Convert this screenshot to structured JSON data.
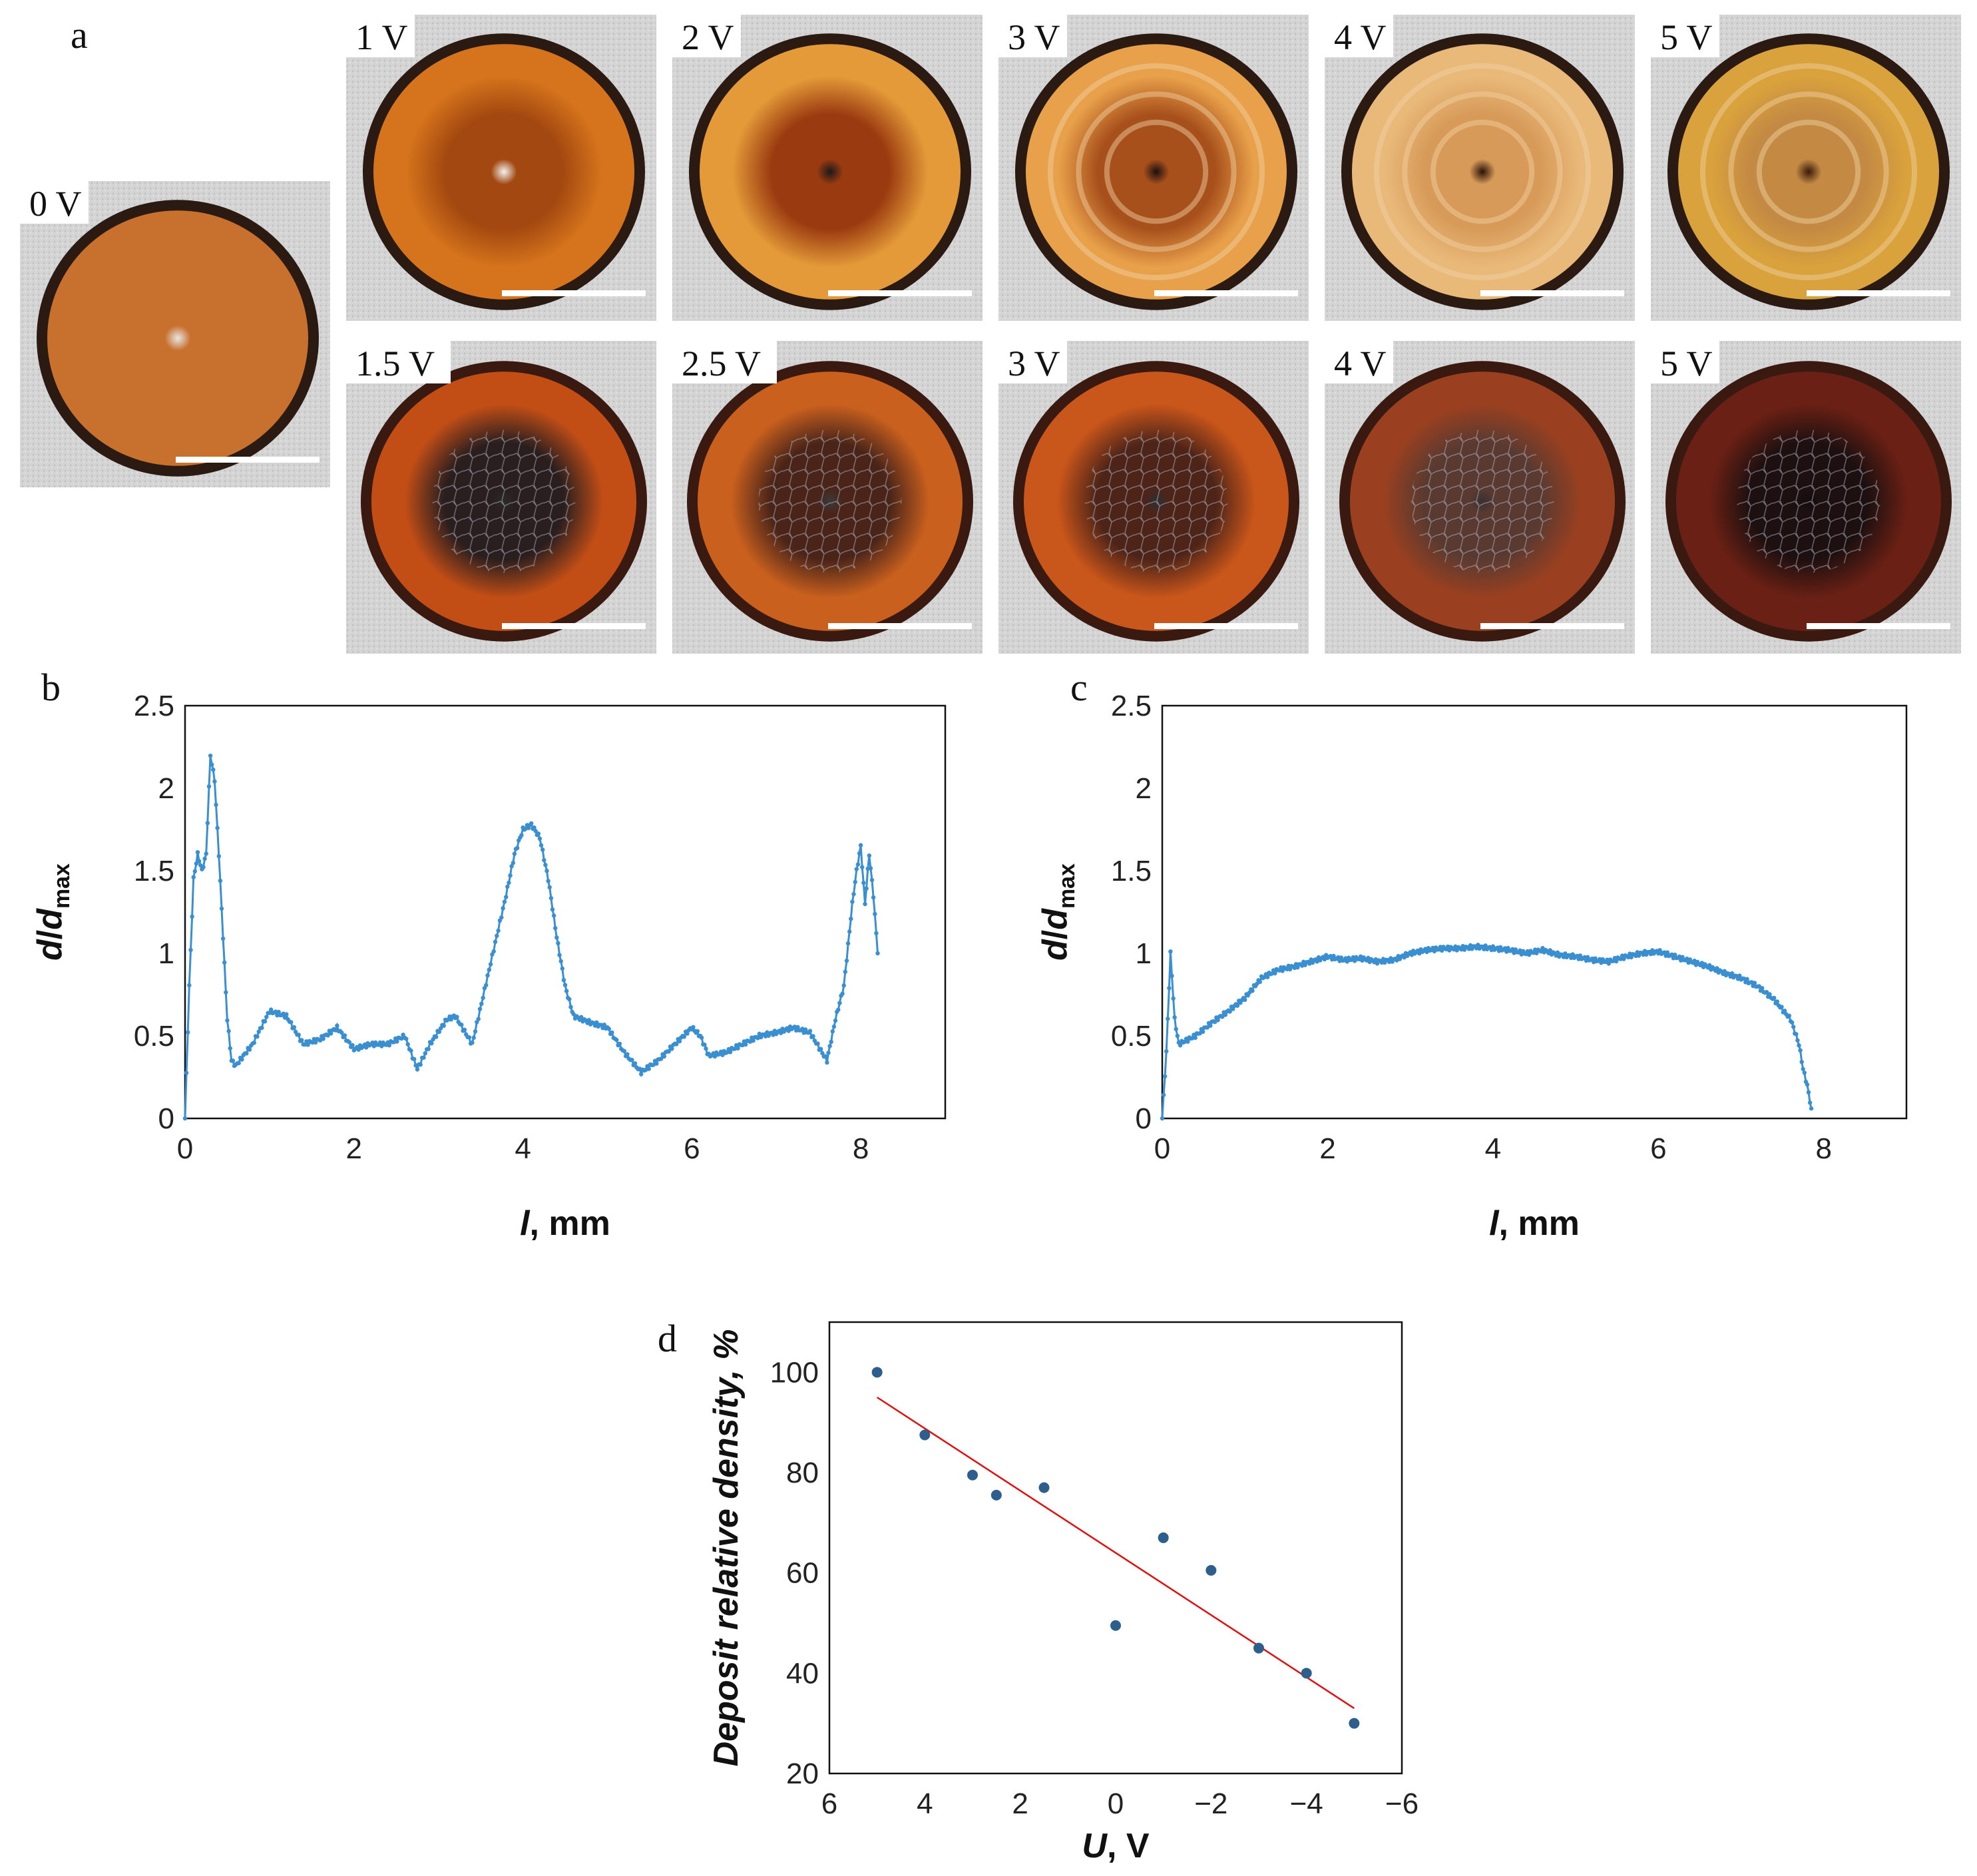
{
  "panel_a": {
    "letter": "a",
    "photos": [
      {
        "label": "0 V",
        "rim": "#2a1a12",
        "mid": "#c8702e",
        "center": "#c8702e",
        "core": "#e6e6e6"
      },
      {
        "label": "1 V",
        "rim": "#2a1a12",
        "mid": "#d5741c",
        "center": "#a34810",
        "core": "#f2f2f2"
      },
      {
        "label": "2 V",
        "rim": "#2a1a12",
        "mid": "#e49a38",
        "center": "#9a3a10",
        "core": "#1a1a1a"
      },
      {
        "label": "3 V",
        "rim": "#2a1a12",
        "mid": "#e8a04a",
        "center": "#a8501c",
        "core": "#1c1010"
      },
      {
        "label": "4 V",
        "rim": "#2a1a12",
        "mid": "#e9b97a",
        "center": "#d79a58",
        "core": "#2a1208"
      },
      {
        "label": "5 V",
        "rim": "#2a1a12",
        "mid": "#d9a23c",
        "center": "#c48a44",
        "core": "#3a1a0a"
      },
      {
        "label": "1.5 V",
        "rim": "#3a1a10",
        "mid": "#c24e16",
        "center": "#2a1e1e",
        "core": "#2a2a2a"
      },
      {
        "label": "2.5 V",
        "rim": "#3a1a10",
        "mid": "#c9601e",
        "center": "#4a2418",
        "core": "#3a3a3a"
      },
      {
        "label": "3 V",
        "rim": "#3a1a10",
        "mid": "#c9561a",
        "center": "#4e2418",
        "core": "#2f2f33"
      },
      {
        "label": "4 V",
        "rim": "#3a1a10",
        "mid": "#9a4020",
        "center": "#5a3a30",
        "core": "#3a3034"
      },
      {
        "label": "5 V",
        "rim": "#3a1a10",
        "mid": "#6a2014",
        "center": "#1e1010",
        "core": "#140c0c"
      }
    ]
  },
  "chart_data": [
    {
      "panel": "b",
      "type": "line",
      "color": "#3a8fd0",
      "xlabel": "l, mm",
      "ylabel": "d/dmax",
      "xlim": [
        0,
        9
      ],
      "ylim": [
        0,
        2.5
      ],
      "xticks": [
        "0",
        "2",
        "4",
        "6",
        "8"
      ],
      "yticks": [
        "0",
        "0.5",
        "1",
        "1.5",
        "2",
        "2.5"
      ],
      "series": [
        {
          "name": "profile",
          "x": [
            0,
            0.05,
            0.1,
            0.15,
            0.2,
            0.25,
            0.3,
            0.35,
            0.4,
            0.45,
            0.5,
            0.55,
            0.6,
            0.8,
            1.0,
            1.2,
            1.4,
            1.6,
            1.8,
            2.0,
            2.2,
            2.4,
            2.6,
            2.75,
            2.9,
            3.1,
            3.2,
            3.4,
            3.6,
            3.8,
            3.9,
            4.0,
            4.1,
            4.2,
            4.3,
            4.4,
            4.5,
            4.6,
            4.8,
            5.0,
            5.2,
            5.4,
            5.6,
            5.8,
            6.0,
            6.1,
            6.2,
            6.4,
            6.6,
            6.8,
            7.0,
            7.2,
            7.4,
            7.6,
            7.7,
            7.8,
            7.9,
            7.95,
            8.0,
            8.05,
            8.1,
            8.15,
            8.2
          ],
          "values": [
            0.0,
            0.8,
            1.45,
            1.6,
            1.5,
            1.6,
            2.2,
            2.05,
            1.6,
            1.1,
            0.6,
            0.35,
            0.32,
            0.45,
            0.65,
            0.62,
            0.45,
            0.48,
            0.55,
            0.42,
            0.45,
            0.45,
            0.5,
            0.3,
            0.45,
            0.6,
            0.62,
            0.45,
            0.9,
            1.35,
            1.6,
            1.75,
            1.78,
            1.7,
            1.45,
            1.1,
            0.8,
            0.62,
            0.58,
            0.55,
            0.4,
            0.28,
            0.35,
            0.45,
            0.55,
            0.5,
            0.38,
            0.4,
            0.45,
            0.5,
            0.52,
            0.55,
            0.52,
            0.35,
            0.6,
            0.8,
            1.3,
            1.5,
            1.65,
            1.3,
            1.6,
            1.35,
            1.0
          ]
        }
      ]
    },
    {
      "panel": "c",
      "type": "line",
      "color": "#3a8fd0",
      "xlabel": "l, mm",
      "ylabel": "d/dmax",
      "xlim": [
        0,
        9
      ],
      "ylim": [
        0,
        2.5
      ],
      "xticks": [
        "0",
        "2",
        "4",
        "6",
        "8"
      ],
      "yticks": [
        "0",
        "0.5",
        "1",
        "1.5",
        "2",
        "2.5"
      ],
      "series": [
        {
          "name": "profile",
          "x": [
            0,
            0.05,
            0.1,
            0.15,
            0.2,
            0.4,
            0.6,
            0.8,
            1.0,
            1.2,
            1.4,
            1.6,
            1.8,
            2.0,
            2.2,
            2.4,
            2.6,
            2.8,
            3.0,
            3.2,
            3.4,
            3.6,
            3.8,
            4.0,
            4.2,
            4.4,
            4.6,
            4.8,
            5.0,
            5.2,
            5.4,
            5.6,
            5.8,
            6.0,
            6.2,
            6.4,
            6.6,
            6.8,
            7.0,
            7.2,
            7.4,
            7.6,
            7.7,
            7.75,
            7.8,
            7.85
          ],
          "values": [
            0.0,
            0.4,
            1.0,
            0.6,
            0.45,
            0.5,
            0.58,
            0.65,
            0.73,
            0.85,
            0.9,
            0.92,
            0.95,
            0.98,
            0.96,
            0.97,
            0.95,
            0.96,
            1.0,
            1.02,
            1.03,
            1.03,
            1.04,
            1.03,
            1.02,
            1.0,
            1.02,
            0.99,
            0.98,
            0.96,
            0.95,
            0.98,
            1.0,
            1.01,
            0.98,
            0.95,
            0.92,
            0.88,
            0.85,
            0.8,
            0.72,
            0.6,
            0.45,
            0.3,
            0.2,
            0.06
          ]
        }
      ]
    },
    {
      "panel": "d",
      "type": "scatter",
      "point_color": "#2e5f8c",
      "fit_color": "#e01010",
      "xlabel": "U, V",
      "ylabel": "Deposit relative density, %",
      "xlim": [
        6,
        -6
      ],
      "ylim": [
        20,
        110
      ],
      "xticks": [
        "6",
        "4",
        "2",
        "0",
        "−2",
        "−4",
        "−6"
      ],
      "yticks": [
        "20",
        "40",
        "60",
        "80",
        "100"
      ],
      "x": [
        5,
        4,
        3,
        2.5,
        1.5,
        0,
        -1,
        -2,
        -3,
        -4,
        -5
      ],
      "values": [
        100,
        87.5,
        79.5,
        75.5,
        77,
        49.5,
        67,
        60.5,
        45,
        40,
        30
      ],
      "fit": {
        "x": [
          5,
          -5
        ],
        "values": [
          95,
          33
        ]
      }
    }
  ]
}
